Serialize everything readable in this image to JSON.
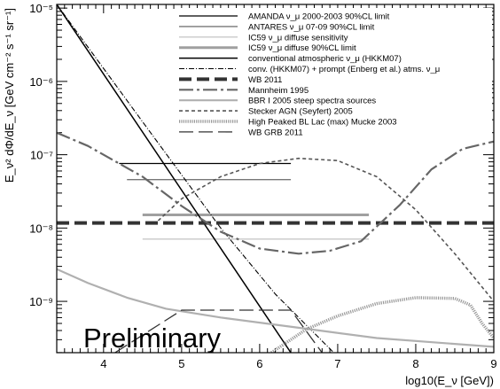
{
  "chart_data": {
    "type": "line",
    "title": "",
    "xlabel": "log10(E_ν [GeV])",
    "ylabel": "E_ν² dΦ/dE_ν [GeV cm⁻² s⁻¹ sr⁻¹]",
    "xlim": [
      3.4,
      9.0
    ],
    "ylim_log10": [
      -9.7,
      -4.95
    ],
    "y_scale": "log",
    "x_ticks": [
      4,
      5,
      6,
      7,
      8,
      9
    ],
    "y_ticks": [
      {
        "text": "10⁻⁵",
        "log": -5
      },
      {
        "text": "10⁻⁶",
        "log": -6
      },
      {
        "text": "10⁻⁷",
        "log": -7
      },
      {
        "text": "10⁻⁸",
        "log": -8
      },
      {
        "text": "10⁻⁹",
        "log": -9
      }
    ],
    "annotation": "Preliminary",
    "legend_position": "top-right",
    "series": [
      {
        "name": "AMANDA  ν_μ 2000-2003 90%CL limit",
        "color": "#000000",
        "width": 1.2,
        "dash": "",
        "points": [
          [
            4.2,
            -7.12
          ],
          [
            6.4,
            -7.12
          ]
        ]
      },
      {
        "name": "ANTARES  ν_μ 07-09 90%CL limit",
        "color": "#777777",
        "width": 1.4,
        "dash": "",
        "points": [
          [
            4.3,
            -7.34
          ],
          [
            6.4,
            -7.34
          ]
        ]
      },
      {
        "name": "IC59 ν_μ diffuse sensitivity",
        "color": "#c8c8c8",
        "width": 1.4,
        "dash": "",
        "points": [
          [
            4.5,
            -8.15
          ],
          [
            7.4,
            -8.15
          ]
        ]
      },
      {
        "name": "IC59 ν_μ diffuse 90%CL limit",
        "color": "#a0a0a0",
        "width": 3.0,
        "dash": "",
        "points": [
          [
            4.5,
            -7.82
          ],
          [
            7.4,
            -7.82
          ]
        ]
      },
      {
        "name": "conventional atmospheric ν_μ (HKKM07)",
        "color": "#000000",
        "width": 1.5,
        "dash": "",
        "points": [
          [
            3.4,
            -4.95
          ],
          [
            6.4,
            -9.7
          ]
        ]
      },
      {
        "name": "conv. (HKKM07) + prompt (Enberg et al.) atms. ν_μ",
        "color": "#000000",
        "width": 1.1,
        "dash": "6,2,1,2",
        "points": [
          [
            3.4,
            -4.95
          ],
          [
            4.5,
            -6.55
          ],
          [
            5.5,
            -8.0
          ],
          [
            6.2,
            -8.9
          ],
          [
            6.95,
            -9.7
          ]
        ]
      },
      {
        "name": "WB 2011",
        "color": "#333333",
        "width": 4.0,
        "dash": "14,6",
        "points": [
          [
            3.4,
            -7.93
          ],
          [
            9.0,
            -7.93
          ]
        ]
      },
      {
        "name": "Mannheim 1995",
        "color": "#666666",
        "width": 2.2,
        "dash": "16,4,3,4",
        "points": [
          [
            3.4,
            -6.7
          ],
          [
            3.8,
            -6.88
          ],
          [
            4.5,
            -7.3
          ],
          [
            5.0,
            -7.7
          ],
          [
            5.5,
            -8.05
          ],
          [
            6.0,
            -8.28
          ],
          [
            6.5,
            -8.35
          ],
          [
            6.9,
            -8.31
          ],
          [
            7.3,
            -8.18
          ],
          [
            7.8,
            -7.68
          ],
          [
            8.2,
            -7.2
          ],
          [
            8.6,
            -6.92
          ],
          [
            9.0,
            -6.82
          ]
        ]
      },
      {
        "name": "BBR I 2005 steep spectra sources",
        "color": "#b0b0b0",
        "width": 2.2,
        "dash": "",
        "points": [
          [
            3.4,
            -8.56
          ],
          [
            3.8,
            -8.75
          ],
          [
            4.3,
            -8.95
          ],
          [
            4.8,
            -9.1
          ],
          [
            5.5,
            -9.22
          ],
          [
            6.5,
            -9.36
          ],
          [
            7.5,
            -9.5
          ],
          [
            8.5,
            -9.58
          ],
          [
            9.0,
            -9.62
          ]
        ]
      },
      {
        "name": "Stecker AGN (Seyfert) 2005",
        "color": "#555555",
        "width": 1.6,
        "dash": "4,3",
        "points": [
          [
            4.7,
            -7.9
          ],
          [
            5.0,
            -7.6
          ],
          [
            5.5,
            -7.3
          ],
          [
            6.0,
            -7.12
          ],
          [
            6.5,
            -7.05
          ],
          [
            7.0,
            -7.08
          ],
          [
            7.5,
            -7.3
          ],
          [
            8.0,
            -7.75
          ],
          [
            8.5,
            -8.35
          ],
          [
            9.0,
            -9.0
          ]
        ]
      },
      {
        "name": "High Peaked BL Lac (max) Mucke 2003",
        "color": "#999999",
        "width": 3.5,
        "dash": "1.2,1.2",
        "points": [
          [
            6.15,
            -9.7
          ],
          [
            6.6,
            -9.38
          ],
          [
            7.0,
            -9.2
          ],
          [
            7.5,
            -9.03
          ],
          [
            8.0,
            -8.95
          ],
          [
            8.5,
            -8.96
          ],
          [
            8.7,
            -9.05
          ],
          [
            8.85,
            -9.3
          ],
          [
            9.0,
            -9.5
          ]
        ]
      },
      {
        "name": "WB GRB 2011",
        "color": "#333333",
        "width": 1.3,
        "dash": "16,6",
        "points": [
          [
            3.4,
            -10.4
          ],
          [
            4.0,
            -9.8
          ],
          [
            5.0,
            -9.12
          ],
          [
            6.4,
            -9.12
          ],
          [
            6.8,
            -9.7
          ]
        ]
      }
    ]
  }
}
